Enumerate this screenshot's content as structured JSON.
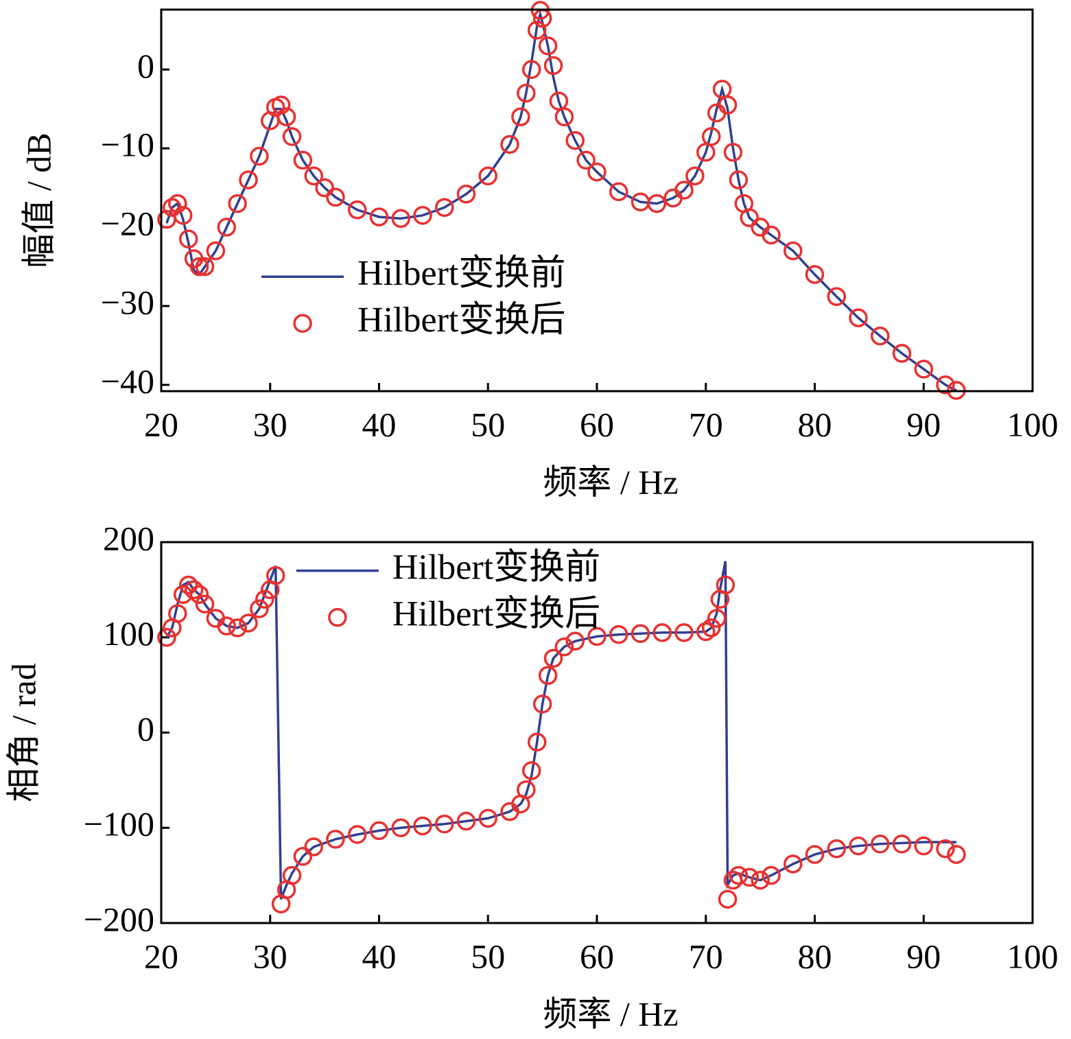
{
  "chart_data": [
    {
      "type": "line",
      "ylabel": "幅值 / dB",
      "xlabel": "频率 / Hz",
      "xlim": [
        20,
        100
      ],
      "xticks": [
        20,
        30,
        40,
        50,
        60,
        70,
        80,
        90,
        100
      ],
      "ylim": [
        -40.8,
        7.6
      ],
      "yticks": [
        {
          "value": -40,
          "label": "−40"
        },
        {
          "value": -30,
          "label": "−30"
        },
        {
          "value": -20,
          "label": "−20"
        },
        {
          "value": -10,
          "label": "−10"
        },
        0
      ],
      "legend": "center left",
      "x": [
        20.5,
        21,
        21.5,
        22,
        22.5,
        23,
        23.5,
        24,
        25,
        26,
        27,
        28,
        29,
        30,
        30.5,
        31,
        31.5,
        32,
        33,
        34,
        35,
        36,
        38,
        40,
        42,
        44,
        46,
        48,
        50,
        52,
        53,
        53.5,
        54,
        54.5,
        54.8,
        55,
        55.5,
        56,
        56.5,
        57,
        58,
        59,
        60,
        62,
        64,
        65.5,
        67,
        68,
        69,
        70,
        70.5,
        71,
        71.5,
        72,
        72.5,
        73,
        73.5,
        74,
        75,
        76,
        78,
        80,
        82,
        84,
        86,
        88,
        90,
        92,
        93
      ],
      "series": [
        {
          "name": "Hilbert变换前",
          "style": "line",
          "color": "#2e3f93",
          "values": [
            -19.5,
            -17.5,
            -17,
            -19,
            -22,
            -25.5,
            -26,
            -25,
            -23,
            -20,
            -17,
            -14,
            -11,
            -7,
            -5,
            -5,
            -6.5,
            -8.5,
            -11.5,
            -13.5,
            -15,
            -16.2,
            -17.8,
            -18.7,
            -18.9,
            -18.5,
            -17.5,
            -15.8,
            -13.5,
            -9.5,
            -6,
            -3,
            1,
            5.5,
            7,
            6,
            3,
            -1,
            -4,
            -6,
            -9,
            -11.5,
            -13,
            -15.5,
            -16.8,
            -17,
            -16.3,
            -15.3,
            -13.5,
            -10.5,
            -8,
            -5,
            -2.5,
            -5,
            -10,
            -14,
            -17,
            -18.8,
            -20,
            -21,
            -23,
            -26,
            -28.8,
            -31.5,
            -33.8,
            -36,
            -38,
            -40,
            -40.7
          ]
        },
        {
          "name": "Hilbert变换后",
          "style": "markers",
          "color": "#e8302f",
          "values": [
            -19,
            -17.5,
            -17,
            -18.5,
            -21.5,
            -24,
            -25,
            -25,
            -23,
            -20,
            -17,
            -14,
            -11,
            -6.5,
            -4.8,
            -4.5,
            -6,
            -8.5,
            -11.5,
            -13.5,
            -15,
            -16.2,
            -17.8,
            -18.7,
            -18.9,
            -18.5,
            -17.5,
            -15.8,
            -13.5,
            -9.5,
            -6,
            -3,
            0,
            5,
            7.5,
            6.5,
            3,
            0.5,
            -4,
            -6,
            -9,
            -11.5,
            -13,
            -15.5,
            -16.8,
            -17,
            -16.3,
            -15.3,
            -13.5,
            -10.5,
            -8.5,
            -5.5,
            -2.5,
            -4.5,
            -10.5,
            -14,
            -17,
            -18.8,
            -20,
            -21,
            -23,
            -26,
            -28.8,
            -31.5,
            -33.8,
            -36,
            -38,
            -40,
            -40.7
          ]
        }
      ]
    },
    {
      "type": "line",
      "ylabel": "相角 / rad",
      "xlabel": "频率 / Hz",
      "xlim": [
        20,
        100
      ],
      "xticks": [
        20,
        30,
        40,
        50,
        60,
        70,
        80,
        90,
        100
      ],
      "ylim": [
        -200,
        200
      ],
      "yticks": [
        {
          "value": -200,
          "label": "−200"
        },
        {
          "value": -100,
          "label": "−100"
        },
        0,
        100,
        200
      ],
      "legend": "upper center",
      "x": [
        20.5,
        21,
        21.5,
        22,
        22.5,
        23,
        23.5,
        24,
        25,
        26,
        27,
        28,
        29,
        29.5,
        30,
        30.5,
        31,
        31.5,
        32,
        33,
        34,
        36,
        38,
        40,
        42,
        44,
        46,
        48,
        50,
        52,
        53,
        53.5,
        54,
        54.5,
        55,
        55.5,
        56,
        57,
        58,
        60,
        62,
        64,
        66,
        68,
        70,
        70.5,
        71,
        71.3,
        71.8,
        72,
        72.5,
        73,
        74,
        75,
        76,
        78,
        80,
        82,
        84,
        86,
        88,
        90,
        92,
        93
      ],
      "series": [
        {
          "name": "Hilbert变换前",
          "style": "line",
          "color": "#2e3f93",
          "values": [
            100,
            110,
            135,
            155,
            158,
            150,
            145,
            135,
            120,
            112,
            110,
            115,
            130,
            145,
            160,
            175,
            -175,
            -160,
            -148,
            -130,
            -120,
            -112,
            -107,
            -103,
            -100,
            -98,
            -96,
            -93,
            -90,
            -83,
            -75,
            -65,
            -45,
            -10,
            30,
            60,
            78,
            90,
            96,
            101,
            103,
            104,
            105,
            105,
            106,
            110,
            125,
            150,
            180,
            -160,
            -150,
            -148,
            -152,
            -155,
            -150,
            -138,
            -128,
            -122,
            -119,
            -117,
            -116,
            -115,
            -115,
            -115
          ]
        },
        {
          "name": "Hilbert变换后",
          "style": "markers",
          "color": "#e8302f",
          "values": [
            100,
            110,
            125,
            145,
            155,
            150,
            145,
            135,
            120,
            112,
            110,
            115,
            130,
            140,
            150,
            165,
            -180,
            -165,
            -150,
            -130,
            -120,
            -112,
            -107,
            -103,
            -100,
            -98,
            -96,
            -93,
            -90,
            -83,
            -75,
            -60,
            -40,
            -10,
            30,
            60,
            78,
            90,
            96,
            101,
            103,
            104,
            105,
            105,
            106,
            110,
            120,
            140,
            155,
            -175,
            -155,
            -150,
            -152,
            -155,
            -150,
            -138,
            -128,
            -122,
            -119,
            -117,
            -117,
            -119,
            -122,
            -128
          ]
        }
      ]
    }
  ]
}
